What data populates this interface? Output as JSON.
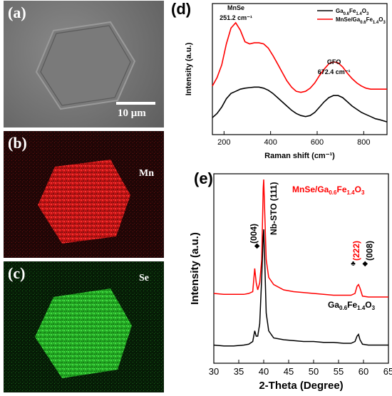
{
  "panels": {
    "a": {
      "label": "(a)",
      "scale_bar": "10 μm"
    },
    "b": {
      "label": "(b)",
      "element": "Mn",
      "color": "#e01818"
    },
    "c": {
      "label": "(c)",
      "element": "Se",
      "color": "#22c022"
    }
  },
  "chart_data": [
    {
      "panel": "(d)",
      "type": "line",
      "xlabel": "Raman shift (cm⁻¹)",
      "ylabel": "Intensity (a.u.)",
      "xlim": [
        150,
        900
      ],
      "xticks": [
        200,
        400,
        600,
        800
      ],
      "yticks": false,
      "grid": false,
      "legend": {
        "position": "top-right",
        "entries": [
          "Ga0.6Fe1.4O3",
          "MnSe/Ga0.6Fe1.4O3"
        ]
      },
      "annotations": [
        {
          "text": "MnSe",
          "x": 251.2
        },
        {
          "text": "251.2 cm⁻¹",
          "x": 251.2
        },
        {
          "text": "GFO",
          "x": 672.4
        },
        {
          "text": "672.4 cm⁻¹",
          "x": 672.4
        }
      ],
      "series": [
        {
          "name": "Ga0.6Fe1.4O3",
          "color": "#000000",
          "x": [
            150,
            170,
            190,
            210,
            230,
            250,
            270,
            290,
            310,
            330,
            350,
            370,
            390,
            410,
            430,
            450,
            470,
            490,
            510,
            530,
            550,
            570,
            590,
            610,
            630,
            650,
            670,
            690,
            710,
            730,
            750,
            770,
            790,
            810,
            830,
            850,
            870,
            900
          ],
          "y": [
            0.1,
            0.14,
            0.2,
            0.28,
            0.33,
            0.35,
            0.37,
            0.38,
            0.385,
            0.39,
            0.39,
            0.38,
            0.36,
            0.33,
            0.29,
            0.25,
            0.21,
            0.17,
            0.14,
            0.12,
            0.11,
            0.12,
            0.15,
            0.2,
            0.25,
            0.29,
            0.31,
            0.31,
            0.29,
            0.25,
            0.21,
            0.18,
            0.15,
            0.13,
            0.11,
            0.09,
            0.08,
            0.06
          ]
        },
        {
          "name": "MnSe/Ga0.6Fe1.4O3",
          "color": "#ff0000",
          "x": [
            150,
            170,
            190,
            210,
            230,
            250,
            270,
            290,
            310,
            330,
            350,
            370,
            390,
            410,
            430,
            450,
            470,
            490,
            510,
            530,
            550,
            570,
            590,
            610,
            630,
            650,
            670,
            690,
            710,
            730,
            750,
            770,
            790,
            810,
            830,
            850,
            870,
            900
          ],
          "y": [
            0.4,
            0.48,
            0.6,
            0.8,
            0.95,
            1.0,
            0.93,
            0.82,
            0.8,
            0.81,
            0.81,
            0.8,
            0.76,
            0.69,
            0.61,
            0.53,
            0.45,
            0.39,
            0.35,
            0.34,
            0.35,
            0.38,
            0.43,
            0.5,
            0.56,
            0.61,
            0.63,
            0.62,
            0.58,
            0.52,
            0.47,
            0.43,
            0.4,
            0.38,
            0.37,
            0.37,
            0.37,
            0.37
          ]
        }
      ]
    },
    {
      "panel": "(e)",
      "type": "line",
      "xlabel": "2-Theta (Degree)",
      "ylabel": "Intensity (a.u.)",
      "xlim": [
        30,
        65
      ],
      "xticks": [
        30,
        35,
        40,
        45,
        50,
        55,
        60,
        65
      ],
      "yticks": false,
      "grid": false,
      "annotations": [
        {
          "text": "MnSe/Ga0.6Fe1.4O3",
          "color": "#ff0000"
        },
        {
          "text": "Nb-STO (111)",
          "x": 40.0
        },
        {
          "text": "(004)",
          "x": 38.4
        },
        {
          "text": "(222)",
          "x": 58.6,
          "color": "#ff0000"
        },
        {
          "text": "(008)",
          "x": 59.2
        },
        {
          "text": "Ga0.6Fe1.4O3"
        }
      ],
      "series": [
        {
          "name": "MnSe/Ga0.6Fe1.4O3",
          "color": "#ff0000",
          "x": [
            30,
            32,
            34,
            36,
            37,
            37.8,
            38.2,
            38.5,
            38.8,
            39.2,
            39.6,
            39.9,
            40.0,
            40.2,
            40.5,
            41,
            42,
            44,
            46,
            48,
            50,
            52,
            54,
            56,
            57.5,
            58.3,
            58.7,
            59.0,
            59.3,
            59.8,
            61,
            63,
            65
          ],
          "y": [
            0.36,
            0.355,
            0.355,
            0.355,
            0.36,
            0.37,
            0.5,
            0.42,
            0.38,
            0.42,
            0.55,
            0.95,
            1.0,
            0.82,
            0.55,
            0.45,
            0.41,
            0.38,
            0.37,
            0.365,
            0.36,
            0.355,
            0.35,
            0.35,
            0.35,
            0.36,
            0.4,
            0.41,
            0.39,
            0.345,
            0.34,
            0.34,
            0.34
          ]
        },
        {
          "name": "Ga0.6Fe1.4O3",
          "color": "#000000",
          "x": [
            30,
            32,
            34,
            36,
            37,
            37.8,
            38.2,
            38.5,
            38.8,
            39.2,
            39.6,
            39.9,
            40.0,
            40.2,
            40.5,
            41,
            42,
            44,
            46,
            48,
            50,
            52,
            54,
            56,
            57.5,
            58.3,
            58.7,
            59.0,
            59.3,
            59.8,
            61,
            63,
            65
          ],
          "y": [
            0.07,
            0.065,
            0.065,
            0.07,
            0.075,
            0.09,
            0.15,
            0.12,
            0.12,
            0.19,
            0.45,
            0.68,
            0.72,
            0.55,
            0.25,
            0.15,
            0.11,
            0.1,
            0.095,
            0.09,
            0.09,
            0.085,
            0.085,
            0.08,
            0.08,
            0.09,
            0.12,
            0.13,
            0.1,
            0.075,
            0.07,
            0.07,
            0.07
          ]
        }
      ]
    }
  ]
}
